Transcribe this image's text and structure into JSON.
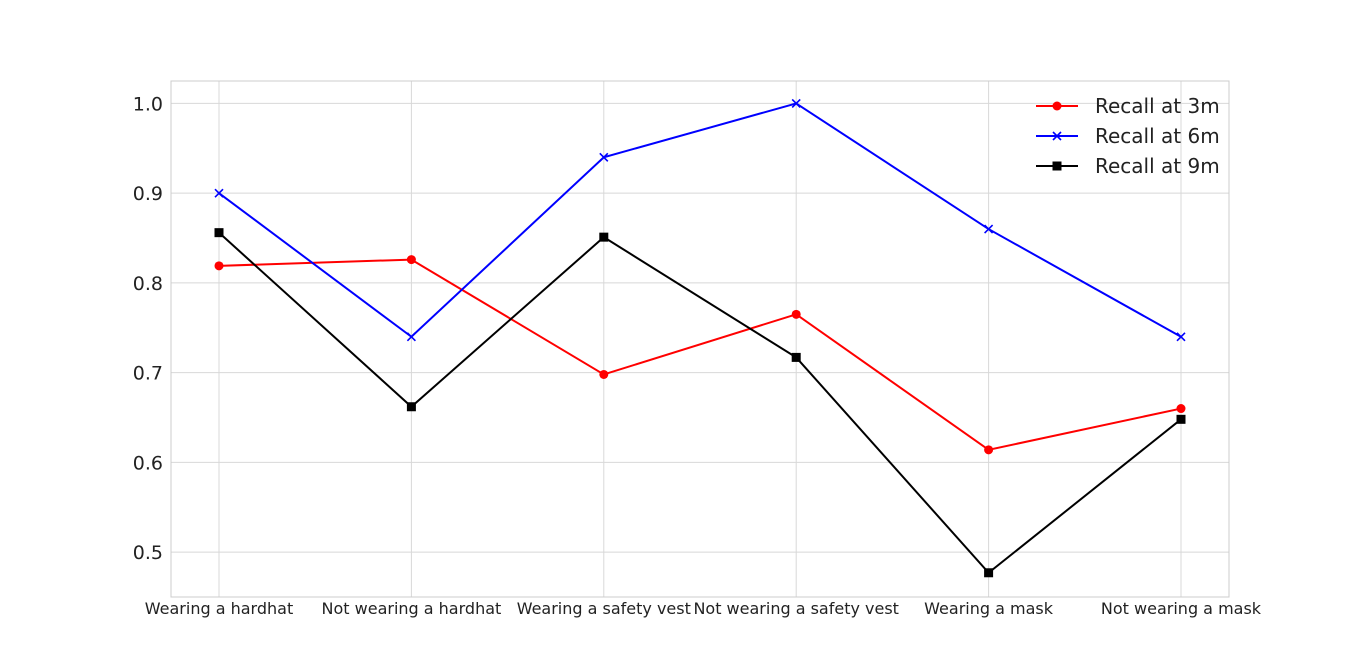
{
  "chart_data": {
    "type": "line",
    "title": "",
    "xlabel": "",
    "ylabel": "",
    "categories": [
      "Wearing a hardhat",
      "Not wearing a hardhat",
      "Wearing a safety vest",
      "Not wearing a safety vest",
      "Wearing a mask",
      "Not wearing a mask"
    ],
    "ylim": [
      0.45,
      1.025
    ],
    "yticks": [
      0.5,
      0.6,
      0.7,
      0.8,
      0.9,
      1.0
    ],
    "ytick_labels": [
      "0.5",
      "0.6",
      "0.7",
      "0.8",
      "0.9",
      "1.0"
    ],
    "grid": true,
    "legend_position": "top-right",
    "series": [
      {
        "name": "Recall at 3m",
        "color": "#ff0000",
        "marker": "circle",
        "values": [
          0.819,
          0.826,
          0.698,
          0.765,
          0.614,
          0.66
        ]
      },
      {
        "name": "Recall at 6m",
        "color": "#0000ff",
        "marker": "x",
        "values": [
          0.9,
          0.74,
          0.94,
          1.0,
          0.86,
          0.74
        ]
      },
      {
        "name": "Recall at 9m",
        "color": "#000000",
        "marker": "square",
        "values": [
          0.856,
          0.662,
          0.851,
          0.717,
          0.477,
          0.648
        ]
      }
    ]
  }
}
